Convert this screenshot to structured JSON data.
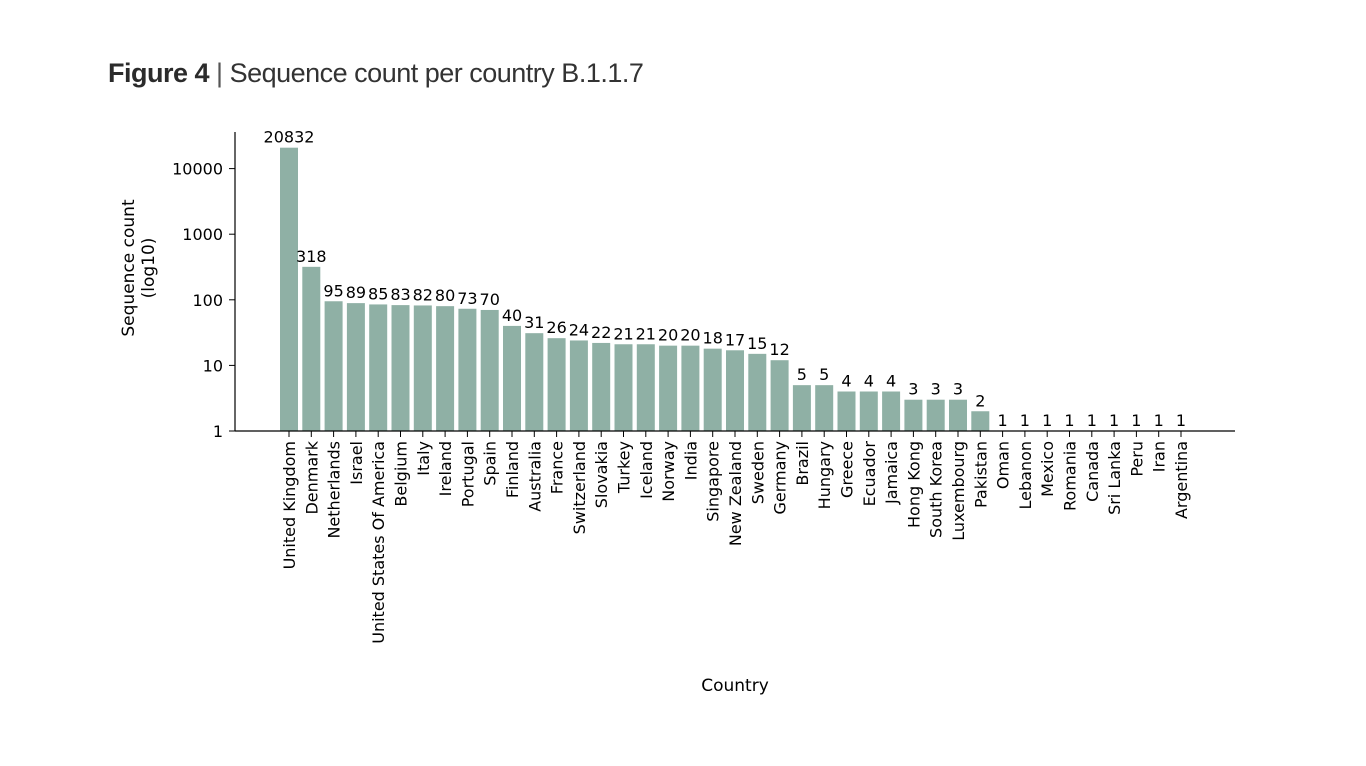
{
  "figure": {
    "number_label": "Figure 4",
    "separator": "|",
    "caption": "Sequence count per country B.1.1.7"
  },
  "chart_data": {
    "type": "bar",
    "xlabel": "Country",
    "ylabel_line1": "Sequence count",
    "ylabel_line2": "(log10)",
    "yscale": "log",
    "ylim": [
      1,
      30000
    ],
    "yticks": [
      1,
      10,
      100,
      1000,
      10000
    ],
    "ytick_labels": [
      "1",
      "10",
      "100",
      "1000",
      "10000"
    ],
    "bar_color": "#8fb0a5",
    "grid": false,
    "categories": [
      "United Kingdom",
      "Denmark",
      "Netherlands",
      "Israel",
      "United States Of America",
      "Belgium",
      "Italy",
      "Ireland",
      "Portugal",
      "Spain",
      "Finland",
      "Australia",
      "France",
      "Switzerland",
      "Slovakia",
      "Turkey",
      "Iceland",
      "Norway",
      "India",
      "Singapore",
      "New Zealand",
      "Sweden",
      "Germany",
      "Brazil",
      "Hungary",
      "Greece",
      "Ecuador",
      "Jamaica",
      "Hong Kong",
      "South Korea",
      "Luxembourg",
      "Pakistan",
      "Oman",
      "Lebanon",
      "Mexico",
      "Romania",
      "Canada",
      "Sri Lanka",
      "Peru",
      "Iran",
      "Argentina"
    ],
    "values": [
      20832,
      318,
      95,
      89,
      85,
      83,
      82,
      80,
      73,
      70,
      40,
      31,
      26,
      24,
      22,
      21,
      21,
      20,
      20,
      18,
      17,
      15,
      12,
      5,
      5,
      4,
      4,
      4,
      3,
      3,
      3,
      2,
      1,
      1,
      1,
      1,
      1,
      1,
      1,
      1,
      1
    ]
  }
}
